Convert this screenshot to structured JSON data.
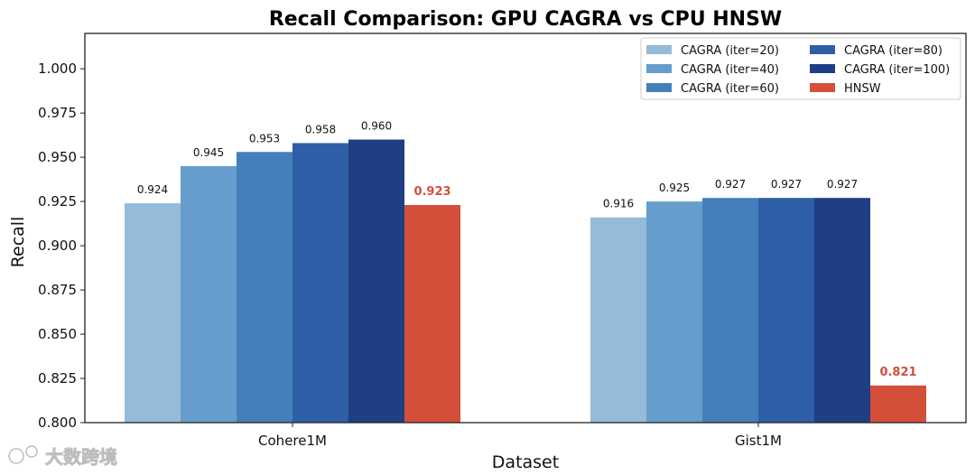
{
  "chart_data": {
    "type": "bar",
    "title": "Recall Comparison: GPU CAGRA vs CPU HNSW",
    "xlabel": "Dataset",
    "ylabel": "Recall",
    "ylim": [
      0.8,
      1.02
    ],
    "yticks": [
      "0.800",
      "0.825",
      "0.850",
      "0.875",
      "0.900",
      "0.925",
      "0.950",
      "0.975",
      "1.000"
    ],
    "categories": [
      "Cohere1M",
      "Gist1M"
    ],
    "series": [
      {
        "name": "CAGRA (iter=20)",
        "values": [
          0.924,
          0.916
        ],
        "labels": [
          "0.924",
          "0.916"
        ],
        "color": "#94bbd9"
      },
      {
        "name": "CAGRA (iter=40)",
        "values": [
          0.945,
          0.925
        ],
        "labels": [
          "0.945",
          "0.925"
        ],
        "color": "#669dcc"
      },
      {
        "name": "CAGRA (iter=60)",
        "values": [
          0.953,
          0.927
        ],
        "labels": [
          "0.953",
          "0.927"
        ],
        "color": "#447fbb"
      },
      {
        "name": "CAGRA (iter=80)",
        "values": [
          0.958,
          0.927
        ],
        "labels": [
          "0.958",
          "0.927"
        ],
        "color": "#2e5ea5"
      },
      {
        "name": "CAGRA (iter=100)",
        "values": [
          0.96,
          0.927
        ],
        "labels": [
          "0.960",
          "0.927"
        ],
        "color": "#1f3e84"
      },
      {
        "name": "HNSW",
        "values": [
          0.923,
          0.821
        ],
        "labels": [
          "0.923",
          "0.821"
        ],
        "color": "#d34f3a",
        "highlight": true
      }
    ],
    "legend_position": "top-right",
    "grid": false
  },
  "watermark": "大数跨境"
}
